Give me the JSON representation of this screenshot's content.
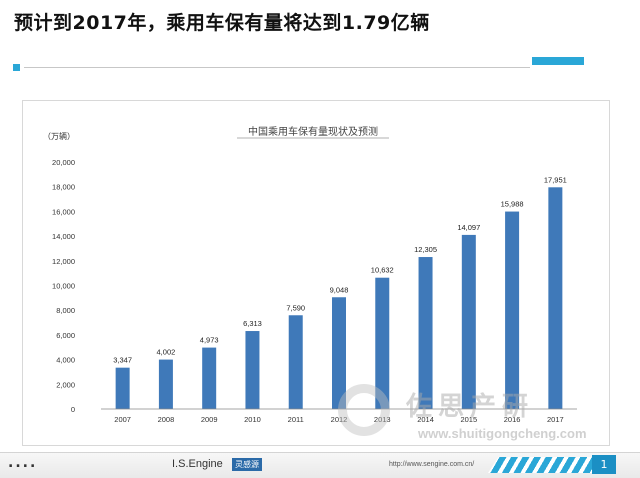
{
  "slide": {
    "title": "预计到2017年，乘用车保有量将达到1.79亿辆"
  },
  "footer": {
    "dots": "....",
    "brand": "I.S.Engine",
    "badge": "灵感源",
    "url": "http://www.sengine.com.cn/",
    "page_number": "1"
  },
  "watermark": {
    "text": "佐思产研",
    "url": "www.shuitigongcheng.com"
  },
  "colors": {
    "bar": "#3f79b9",
    "accent": "#2aa7d7"
  },
  "chart_data": {
    "type": "bar",
    "title": "中国乘用车保有量现状及预测",
    "unit_label": "（万辆）",
    "xlabel": "",
    "ylabel": "",
    "categories": [
      "2007",
      "2008",
      "2009",
      "2010",
      "2011",
      "2012",
      "2013",
      "2014",
      "2015",
      "2016",
      "2017"
    ],
    "values": [
      3347,
      4002,
      4973,
      6313,
      7590,
      9048,
      10632,
      12305,
      14097,
      15988,
      17951
    ],
    "value_labels": [
      "3,347",
      "4,002",
      "4,973",
      "6,313",
      "7,590",
      "9,048",
      "10,632",
      "12,305",
      "14,097",
      "15,988",
      "17,951"
    ],
    "ylim": [
      0,
      20000
    ],
    "yticks": [
      0,
      2000,
      4000,
      6000,
      8000,
      10000,
      12000,
      14000,
      16000,
      18000,
      20000
    ],
    "ytick_labels": [
      "0",
      "2,000",
      "4,000",
      "6,000",
      "8,000",
      "10,000",
      "12,000",
      "14,000",
      "16,000",
      "18,000",
      "20,000"
    ],
    "grid": false,
    "legend": "none"
  }
}
